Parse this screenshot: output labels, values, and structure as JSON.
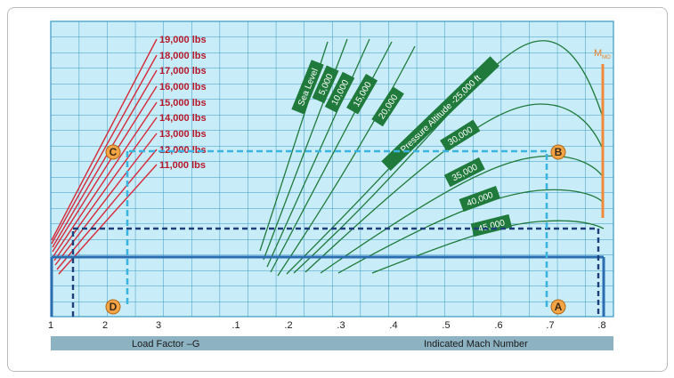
{
  "weights": [
    "19,000 lbs",
    "18,000 lbs",
    "17,000 lbs",
    "16,000 lbs",
    "15,000 lbs",
    "14,000 lbs",
    "13,000 lbs",
    "12,000 lbs",
    "11,000 lbs"
  ],
  "altitudes": [
    "Sea Level",
    "5,000",
    "10,000",
    "15,000",
    "20,000",
    "Pressure Altitude -25,000 ft",
    "30,000",
    "35,000",
    "40,000",
    "45,000"
  ],
  "load_ticks": [
    "1",
    "2",
    "3"
  ],
  "mach_ticks": [
    ".1",
    ".2",
    ".3",
    ".4",
    ".5",
    ".6",
    ".7",
    ".8"
  ],
  "points": {
    "a": "A",
    "b": "B",
    "c": "C",
    "d": "D"
  },
  "mmo": {
    "main": "M",
    "sub": "MO"
  },
  "axis": {
    "load": "Load Factor –G",
    "mach": "Indicated Mach Number"
  },
  "colors": {
    "grid_bg": "#c8ecf8",
    "grid_line": "#3a98c4",
    "weight_line": "#d62a3a",
    "alt_line": "#1f7a3c",
    "alt_tag": "#1f7a3c",
    "dash_light": "#3bb4e0",
    "dash_dark": "#1d3f7a",
    "solid": "#2a6db0",
    "mmo_line": "#f08a3a",
    "point_fill": "#f5a445",
    "axis_bar": "#8db3c3"
  }
}
